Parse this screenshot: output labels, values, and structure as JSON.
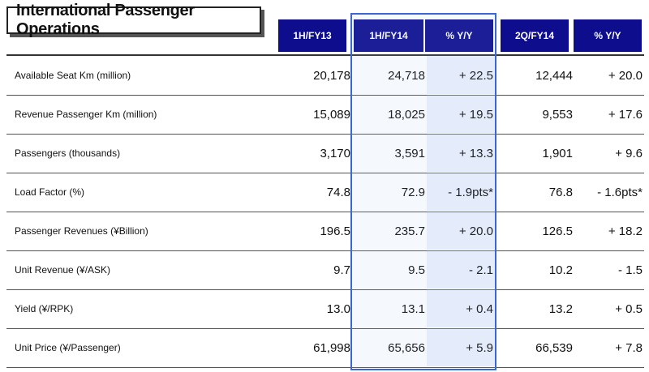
{
  "title": "International Passenger Operations",
  "headers": [
    "1H/FY13",
    "1H/FY14",
    "%  Y/Y",
    "2Q/FY14",
    "%  Y/Y"
  ],
  "rows": [
    {
      "label": "Available Seat Km (million)",
      "values": [
        "20,178",
        "24,718",
        "+ 22.5",
        "12,444",
        "+ 20.0"
      ]
    },
    {
      "label": "Revenue Passenger Km (million)",
      "values": [
        "15,089",
        "18,025",
        "+ 19.5",
        "9,553",
        "+ 17.6"
      ]
    },
    {
      "label": "Passengers (thousands)",
      "values": [
        "3,170",
        "3,591",
        "+ 13.3",
        "1,901",
        "+ 9.6"
      ]
    },
    {
      "label": "Load Factor (%)",
      "values": [
        "74.8",
        "72.9",
        "- 1.9pts*",
        "76.8",
        "- 1.6pts*"
      ]
    },
    {
      "label": "Passenger Revenues (¥Billion)",
      "values": [
        "196.5",
        "235.7",
        "+ 20.0",
        "126.5",
        "+ 18.2"
      ]
    },
    {
      "label": "Unit Revenue (¥/ASK)",
      "values": [
        "9.7",
        "9.5",
        "- 2.1",
        "10.2",
        "- 1.5"
      ]
    },
    {
      "label": "Yield (¥/RPK)",
      "values": [
        "13.0",
        "13.1",
        "+ 0.4",
        "13.2",
        "+ 0.5"
      ]
    },
    {
      "label": "Unit Price (¥/Passenger)",
      "values": [
        "61,998",
        "65,656",
        "+ 5.9",
        "66,539",
        "+ 7.8"
      ]
    }
  ],
  "colors": {
    "header_bg": "#0d0d8e",
    "highlight_border": "#3b66d6"
  }
}
